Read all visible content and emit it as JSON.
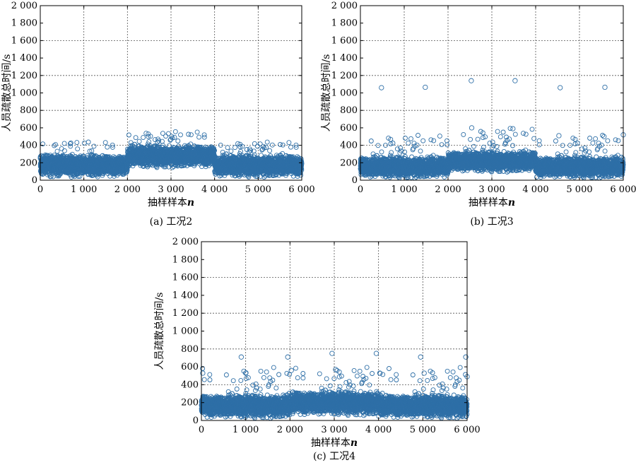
{
  "colors": {
    "marker": "#2e6fa7",
    "grid": "#555555",
    "axis": "#000000"
  },
  "chart_data": [
    {
      "type": "scatter",
      "caption": "(a) 工况2",
      "xlabel": "抽样样本",
      "xlabel_var": "n",
      "ylabel": "人员疏散总时间/s",
      "xlim": [
        0,
        6000
      ],
      "ylim": [
        0,
        2000
      ],
      "x_ticks": [
        "0",
        "1 000",
        "2 000",
        "3 000",
        "4 000",
        "5 000",
        "6 000"
      ],
      "y_ticks": [
        "0",
        "200",
        "400",
        "600",
        "800",
        "1 000",
        "1 200",
        "1 400",
        "1 600",
        "1 800",
        "2 000"
      ],
      "grid": true,
      "marker": "circle-open",
      "n_points": 6000,
      "segments": [
        {
          "x_range": [
            0,
            2000
          ],
          "typical_range": [
            20,
            320
          ],
          "max": 440
        },
        {
          "x_range": [
            2000,
            4000
          ],
          "typical_range": [
            130,
            430
          ],
          "max": 560
        },
        {
          "x_range": [
            4000,
            6000
          ],
          "typical_range": [
            20,
            320
          ],
          "max": 440
        }
      ],
      "outliers": []
    },
    {
      "type": "scatter",
      "caption": "(b) 工况3",
      "xlabel": "抽样样本",
      "xlabel_var": "n",
      "ylabel": "人员疏散总时间/s",
      "xlim": [
        0,
        6000
      ],
      "ylim": [
        0,
        2000
      ],
      "x_ticks": [
        "0",
        "1 000",
        "2 000",
        "3 000",
        "4 000",
        "5 000",
        "6 000"
      ],
      "y_ticks": [
        "0",
        "200",
        "400",
        "600",
        "800",
        "1 000",
        "1 200",
        "1 400",
        "1 600",
        "1 800",
        "2 000"
      ],
      "grid": true,
      "marker": "circle-open",
      "n_points": 6000,
      "segments": [
        {
          "x_range": [
            0,
            2000
          ],
          "typical_range": [
            10,
            300
          ],
          "max": 520
        },
        {
          "x_range": [
            2000,
            4000
          ],
          "typical_range": [
            80,
            360
          ],
          "max": 600
        },
        {
          "x_range": [
            4000,
            6000
          ],
          "typical_range": [
            10,
            300
          ],
          "max": 520
        }
      ],
      "outliers": [
        [
          480,
          1060
        ],
        [
          1480,
          1065
        ],
        [
          2530,
          1140
        ],
        [
          3530,
          1140
        ],
        [
          4560,
          1060
        ],
        [
          5580,
          1065
        ],
        [
          4530,
          510
        ],
        [
          5560,
          500
        ],
        [
          2540,
          600
        ],
        [
          3480,
          590
        ],
        [
          6000,
          520
        ]
      ]
    },
    {
      "type": "scatter",
      "caption": "(c) 工况4",
      "xlabel": "抽样样本",
      "xlabel_var": "n",
      "ylabel": "人员疏散总时间/s",
      "xlim": [
        0,
        6000
      ],
      "ylim": [
        0,
        2000
      ],
      "x_ticks": [
        "0",
        "1 000",
        "2 000",
        "3 000",
        "4 000",
        "5 000",
        "6 000"
      ],
      "y_ticks": [
        "0",
        "200",
        "400",
        "600",
        "800",
        "1 000",
        "1 200",
        "1 400",
        "1 600",
        "1 800",
        "2 000"
      ],
      "grid": true,
      "marker": "circle-open",
      "n_points": 6000,
      "segments": [
        {
          "x_range": [
            0,
            2000
          ],
          "typical_range": [
            10,
            320
          ],
          "max": 600
        },
        {
          "x_range": [
            2000,
            4000
          ],
          "typical_range": [
            40,
            360
          ],
          "max": 600
        },
        {
          "x_range": [
            4000,
            6000
          ],
          "typical_range": [
            10,
            320
          ],
          "max": 600
        }
      ],
      "outliers": [
        [
          900,
          710
        ],
        [
          1950,
          710
        ],
        [
          2950,
          750
        ],
        [
          3950,
          750
        ],
        [
          4950,
          710
        ],
        [
          5970,
          710
        ],
        [
          30,
          530
        ],
        [
          1000,
          530
        ],
        [
          2030,
          560
        ],
        [
          3030,
          570
        ],
        [
          4030,
          530
        ],
        [
          5030,
          530
        ],
        [
          6000,
          490
        ]
      ]
    }
  ]
}
